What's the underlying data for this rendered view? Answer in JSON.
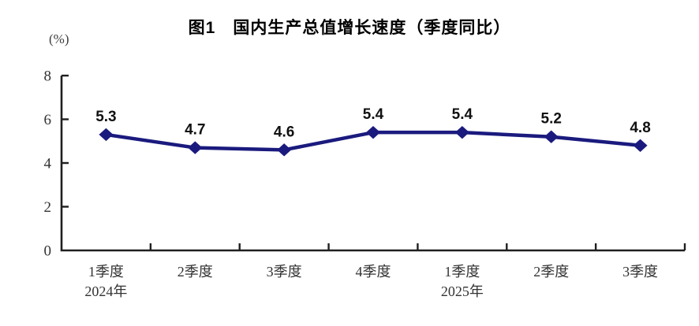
{
  "figure": {
    "title": "图1　国内生产总值增长速度（季度同比）",
    "unit_label": "(%)"
  },
  "chart_data": {
    "type": "line",
    "title": "图1　国内生产总值增长速度（季度同比）",
    "ylabel": "(%)",
    "xlabel": "",
    "categories": [
      "1季度",
      "2季度",
      "3季度",
      "4季度",
      "1季度",
      "2季度",
      "3季度"
    ],
    "category_year_sublabels": [
      "2024年",
      "",
      "",
      "",
      "2025年",
      "",
      ""
    ],
    "values": [
      5.3,
      4.7,
      4.6,
      5.4,
      5.4,
      5.2,
      4.8
    ],
    "data_labels": [
      "5.3",
      "4.7",
      "4.6",
      "5.4",
      "5.4",
      "5.2",
      "4.8"
    ],
    "ylim": [
      0,
      8
    ],
    "yticks": [
      0,
      2,
      4,
      6,
      8
    ],
    "grid": false,
    "legend": "none",
    "line_color": "#1a1a7e",
    "marker_shape": "diamond",
    "axis_color": "#1f1f1f",
    "data_label_color": "#111111",
    "tick_label_color": "#333333"
  }
}
